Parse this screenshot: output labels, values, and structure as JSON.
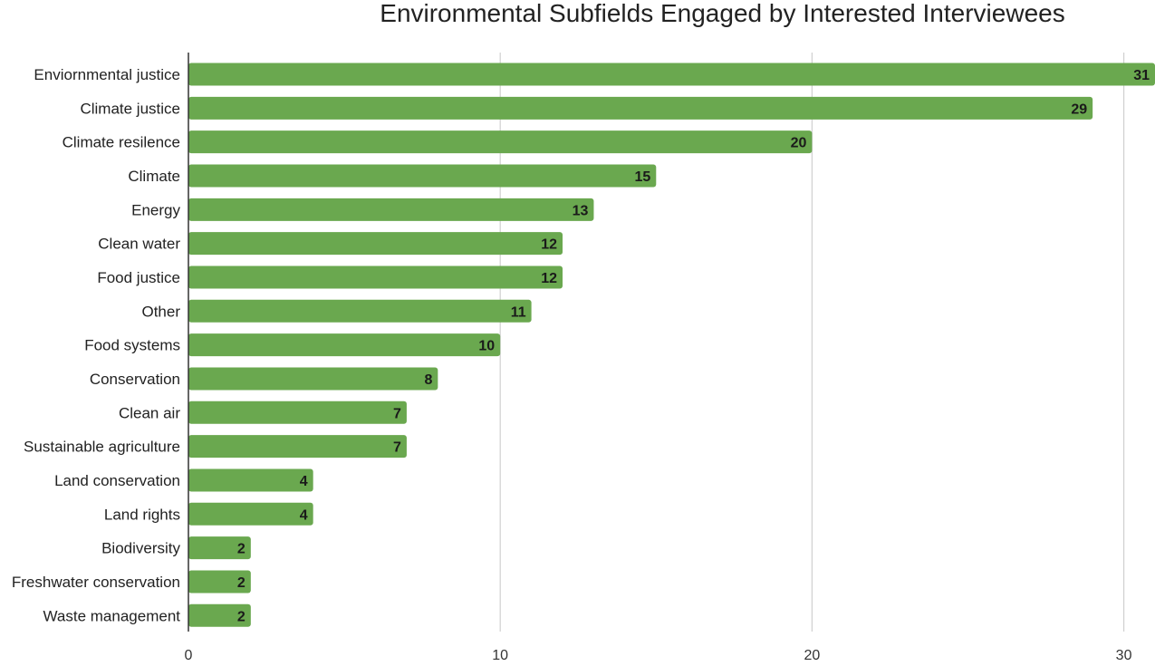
{
  "chart_data": {
    "type": "bar",
    "orientation": "horizontal",
    "title": "Environmental Subfields Engaged by Interested Interviewees",
    "xlabel": "",
    "ylabel": "",
    "categories": [
      "Enviornmental justice",
      "Climate justice",
      "Climate resilence",
      "Climate",
      "Energy",
      "Clean water",
      "Food justice",
      "Other",
      "Food systems",
      "Conservation",
      "Clean air",
      "Sustainable agriculture",
      "Land conservation",
      "Land rights",
      "Biodiversity",
      "Freshwater conservation",
      "Waste management"
    ],
    "values": [
      31,
      29,
      20,
      15,
      13,
      12,
      12,
      11,
      10,
      8,
      7,
      7,
      4,
      4,
      2,
      2,
      2
    ],
    "xlim": [
      0,
      31
    ],
    "xticks": [
      0,
      10,
      20,
      30
    ],
    "grid": true,
    "data_labels": true,
    "bar_color": "#6aa84f",
    "grid_color": "#d0d0d0",
    "axis_color": "#333333"
  }
}
